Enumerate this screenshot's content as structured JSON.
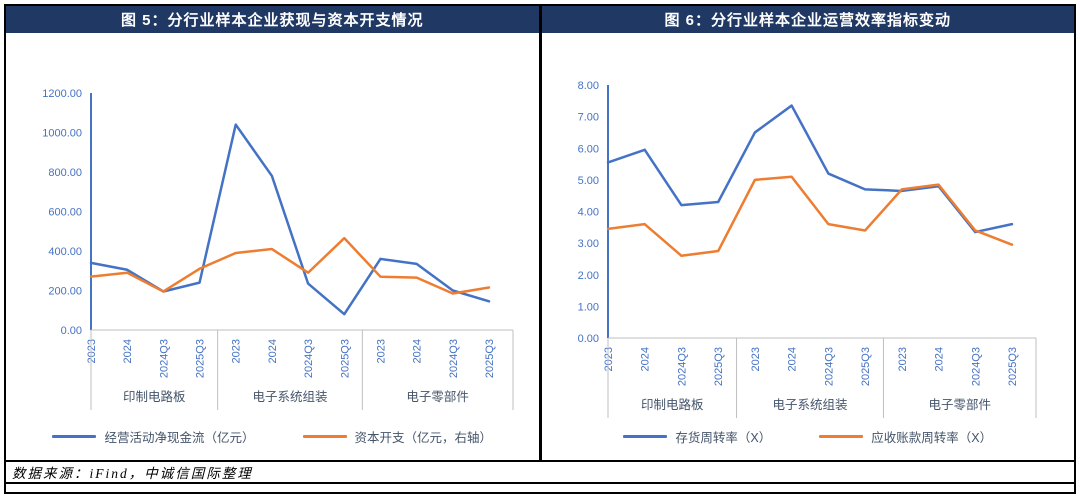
{
  "colors": {
    "header_bg": "#1F3864",
    "header_text": "#FFFFFF",
    "blue": "#4472C4",
    "orange": "#ED7D31",
    "axis_text": "#4472C4",
    "label_text": "#44546A",
    "axis_line": "#BFBFBF"
  },
  "figure5": {
    "title": "图 5：分行业样本企业获现与资本开支情况",
    "legend": [
      "经营活动净现金流（亿元）",
      "资本开支（亿元，右轴）"
    ]
  },
  "figure6": {
    "title": "图 6：分行业样本企业运营效率指标变动",
    "legend": [
      "存货周转率（X）",
      "应收账款周转率（X）"
    ]
  },
  "footer": {
    "source": "数据来源：iFind，中诚信国际整理"
  },
  "chart_data": [
    {
      "id": "chart5",
      "type": "line",
      "title": "图 5：分行业样本企业获现与资本开支情况",
      "categories": [
        "2023",
        "2024",
        "2024Q3",
        "2025Q3",
        "2023",
        "2024",
        "2024Q3",
        "2025Q3",
        "2023",
        "2024",
        "2024Q3",
        "2025Q3"
      ],
      "groups": [
        {
          "label": "印制电路板",
          "span": 4
        },
        {
          "label": "电子系统组装",
          "span": 4
        },
        {
          "label": "电子零部件",
          "span": 4
        }
      ],
      "series": [
        {
          "name": "经营活动净现金流（亿元）",
          "axis": "left",
          "color": "#4472C4",
          "values": [
            340,
            305,
            195,
            240,
            1040,
            780,
            235,
            80,
            360,
            335,
            200,
            145
          ]
        },
        {
          "name": "资本开支（亿元，右轴）",
          "axis": "right",
          "color": "#ED7D31",
          "values": [
            270,
            290,
            195,
            310,
            390,
            410,
            290,
            465,
            270,
            265,
            185,
            215
          ]
        }
      ],
      "ylim": [
        0,
        1200
      ],
      "ytick_step": 200,
      "grid": false,
      "legend_position": "bottom"
    },
    {
      "id": "chart6",
      "type": "line",
      "title": "图 6：分行业样本企业运营效率指标变动",
      "categories": [
        "2023",
        "2024",
        "2024Q3",
        "2025Q3",
        "2023",
        "2024",
        "2024Q3",
        "2025Q3",
        "2023",
        "2024",
        "2024Q3",
        "2025Q3"
      ],
      "groups": [
        {
          "label": "印制电路板",
          "span": 4
        },
        {
          "label": "电子系统组装",
          "span": 4
        },
        {
          "label": "电子零部件",
          "span": 4
        }
      ],
      "series": [
        {
          "name": "存货周转率（X）",
          "axis": "left",
          "color": "#4472C4",
          "values": [
            5.55,
            5.95,
            4.2,
            4.3,
            6.5,
            7.35,
            5.2,
            4.7,
            4.65,
            4.8,
            3.35,
            3.6
          ]
        },
        {
          "name": "应收账款周转率（X）",
          "axis": "left",
          "color": "#ED7D31",
          "values": [
            3.45,
            3.6,
            2.6,
            2.75,
            5.0,
            5.1,
            3.6,
            3.4,
            4.7,
            4.85,
            3.4,
            2.95
          ]
        }
      ],
      "ylim": [
        0,
        8
      ],
      "ytick_step": 1,
      "grid": false,
      "legend_position": "bottom"
    }
  ]
}
